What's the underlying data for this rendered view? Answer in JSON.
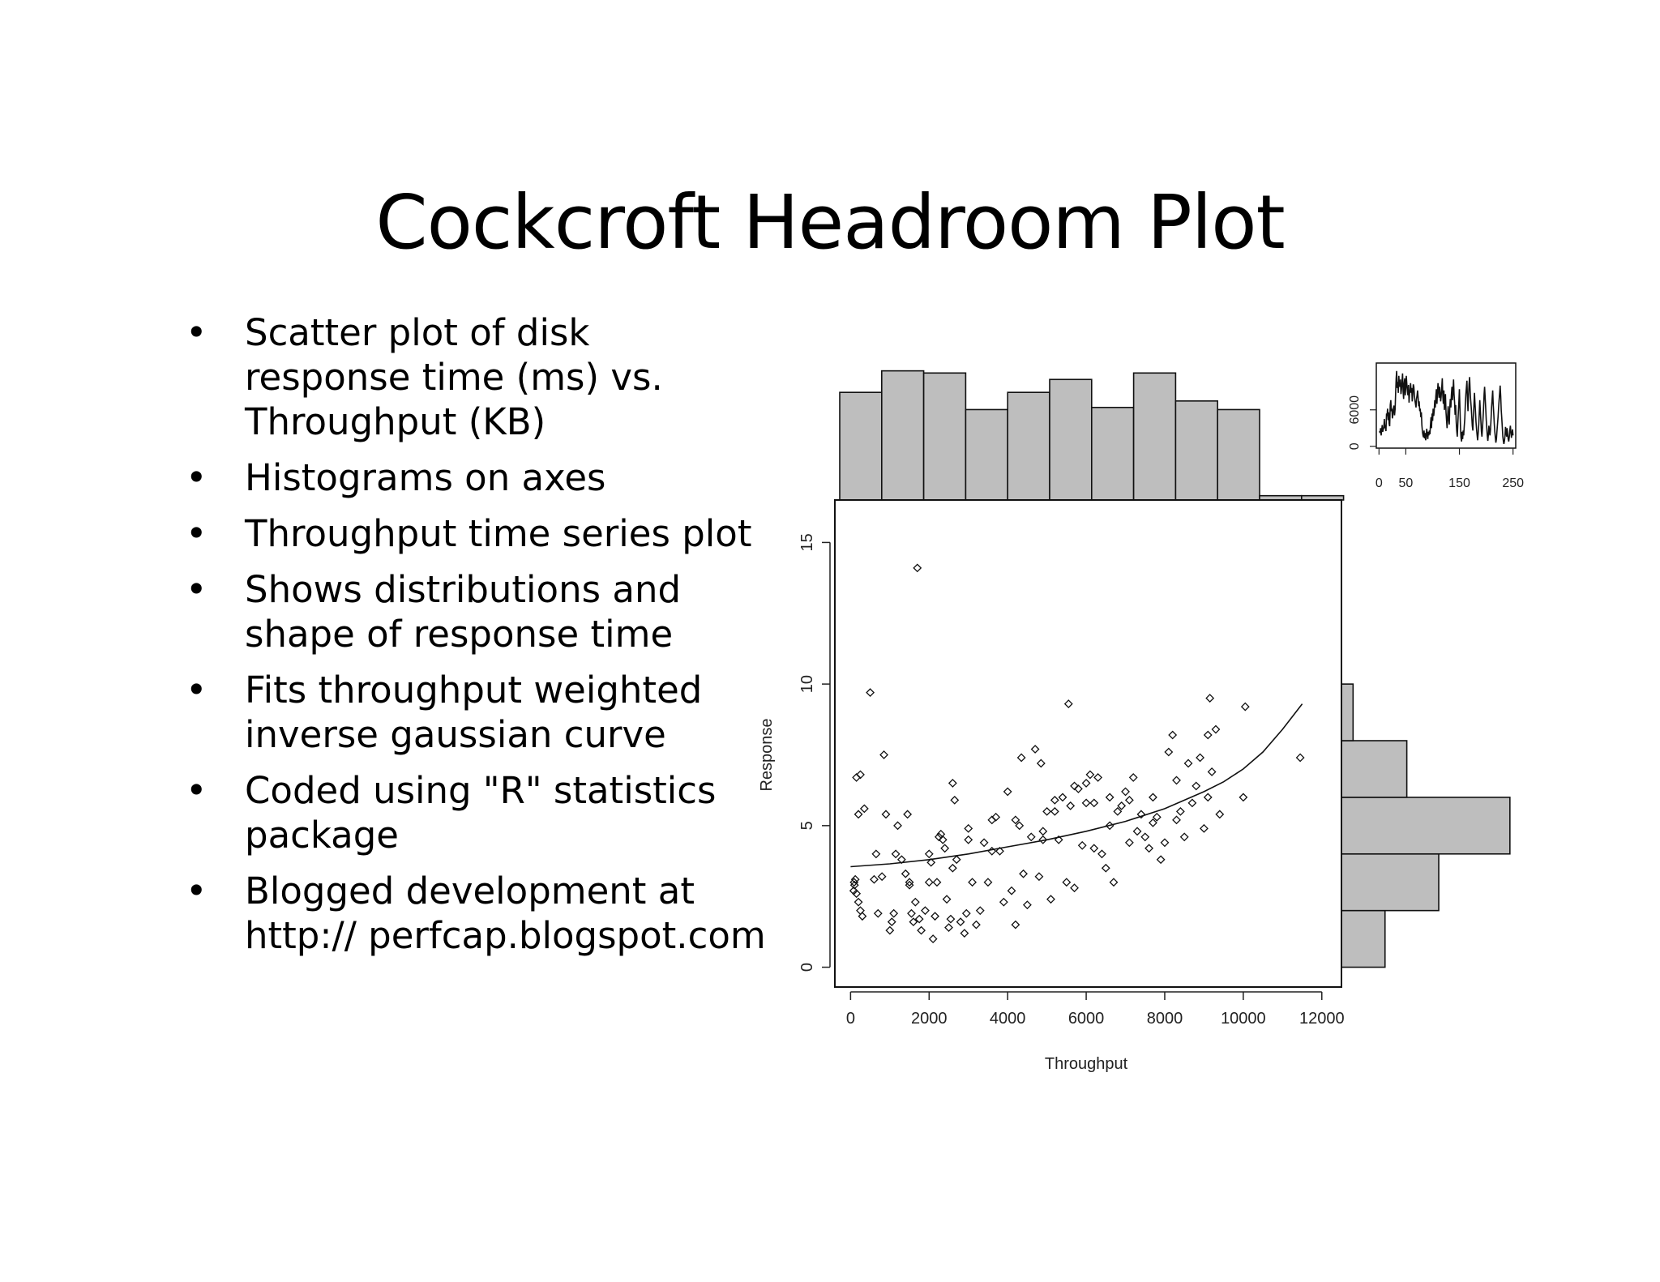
{
  "slide": {
    "title": "Cockcroft Headroom Plot",
    "bullets": [
      "Scatter plot of disk response time (ms) vs. Throughput (KB)",
      "Histograms on axes",
      "Throughput time series plot",
      "Shows distributions and shape of response time",
      "Fits throughput weighted inverse gaussian curve",
      "Coded using \"R\" statistics package",
      "Blogged development at http:// perfcap.blogspot.com"
    ]
  },
  "chart_data": [
    {
      "type": "scatter",
      "title": "",
      "xlabel": "Throughput",
      "ylabel": "Response",
      "xlim": [
        -400,
        12500
      ],
      "ylim": [
        -0.7,
        16.5
      ],
      "xticks": [
        0,
        2000,
        4000,
        6000,
        8000,
        10000,
        12000
      ],
      "yticks": [
        0,
        5,
        10,
        15
      ],
      "grid": false,
      "marker": "open-diamond",
      "points": [
        [
          100,
          2.9
        ],
        [
          150,
          2.6
        ],
        [
          200,
          2.3
        ],
        [
          250,
          2.0
        ],
        [
          80,
          2.7
        ],
        [
          120,
          3.1
        ],
        [
          300,
          1.8
        ],
        [
          90,
          3.0
        ],
        [
          200,
          5.4
        ],
        [
          350,
          5.6
        ],
        [
          150,
          6.7
        ],
        [
          250,
          6.8
        ],
        [
          500,
          9.7
        ],
        [
          600,
          3.1
        ],
        [
          700,
          1.9
        ],
        [
          650,
          4.0
        ],
        [
          800,
          3.2
        ],
        [
          850,
          7.5
        ],
        [
          900,
          5.4
        ],
        [
          1000,
          1.3
        ],
        [
          1050,
          1.6
        ],
        [
          1100,
          1.9
        ],
        [
          1150,
          4.0
        ],
        [
          1200,
          5.0
        ],
        [
          1300,
          3.8
        ],
        [
          1400,
          3.3
        ],
        [
          1450,
          5.4
        ],
        [
          1500,
          3.0
        ],
        [
          1550,
          1.9
        ],
        [
          1600,
          1.6
        ],
        [
          1650,
          2.3
        ],
        [
          1700,
          14.1
        ],
        [
          1750,
          1.7
        ],
        [
          1800,
          1.3
        ],
        [
          1900,
          2.0
        ],
        [
          2000,
          3.0
        ],
        [
          2050,
          3.7
        ],
        [
          2100,
          1.0
        ],
        [
          2150,
          1.8
        ],
        [
          2200,
          3.0
        ],
        [
          2250,
          4.6
        ],
        [
          2300,
          4.7
        ],
        [
          2350,
          4.5
        ],
        [
          2400,
          4.2
        ],
        [
          2450,
          2.4
        ],
        [
          2500,
          1.4
        ],
        [
          2550,
          1.7
        ],
        [
          2600,
          6.5
        ],
        [
          2650,
          5.9
        ],
        [
          2700,
          3.8
        ],
        [
          2800,
          1.6
        ],
        [
          2900,
          1.2
        ],
        [
          2950,
          1.9
        ],
        [
          3000,
          4.9
        ],
        [
          3100,
          3.0
        ],
        [
          3200,
          1.5
        ],
        [
          3300,
          2.0
        ],
        [
          3400,
          4.4
        ],
        [
          3500,
          3.0
        ],
        [
          3600,
          5.2
        ],
        [
          3700,
          5.3
        ],
        [
          3800,
          4.1
        ],
        [
          3900,
          2.3
        ],
        [
          4000,
          6.2
        ],
        [
          4100,
          2.7
        ],
        [
          4200,
          1.5
        ],
        [
          4300,
          5.0
        ],
        [
          4350,
          7.4
        ],
        [
          4400,
          3.3
        ],
        [
          4500,
          2.2
        ],
        [
          4600,
          4.6
        ],
        [
          4700,
          7.7
        ],
        [
          4800,
          3.2
        ],
        [
          4850,
          7.2
        ],
        [
          4900,
          4.8
        ],
        [
          5000,
          5.5
        ],
        [
          5100,
          2.4
        ],
        [
          5200,
          5.9
        ],
        [
          5300,
          4.5
        ],
        [
          5400,
          6.0
        ],
        [
          5500,
          3.0
        ],
        [
          5550,
          9.3
        ],
        [
          5600,
          5.7
        ],
        [
          5700,
          2.8
        ],
        [
          5800,
          6.3
        ],
        [
          5900,
          4.3
        ],
        [
          6000,
          6.5
        ],
        [
          6100,
          6.8
        ],
        [
          6200,
          5.8
        ],
        [
          6300,
          6.7
        ],
        [
          6400,
          4.0
        ],
        [
          6500,
          3.5
        ],
        [
          6600,
          6.0
        ],
        [
          6700,
          3.0
        ],
        [
          6800,
          5.5
        ],
        [
          6900,
          5.7
        ],
        [
          7000,
          6.2
        ],
        [
          7100,
          4.4
        ],
        [
          7200,
          6.7
        ],
        [
          7300,
          4.8
        ],
        [
          7400,
          5.4
        ],
        [
          7500,
          4.6
        ],
        [
          7600,
          4.2
        ],
        [
          7700,
          6.0
        ],
        [
          7800,
          5.3
        ],
        [
          7900,
          3.8
        ],
        [
          8000,
          4.4
        ],
        [
          8100,
          7.6
        ],
        [
          8200,
          8.2
        ],
        [
          8300,
          6.6
        ],
        [
          8400,
          5.5
        ],
        [
          8500,
          4.6
        ],
        [
          8600,
          7.2
        ],
        [
          8700,
          5.8
        ],
        [
          8800,
          6.4
        ],
        [
          8900,
          7.4
        ],
        [
          9000,
          4.9
        ],
        [
          9100,
          8.2
        ],
        [
          9150,
          9.5
        ],
        [
          9200,
          6.9
        ],
        [
          9300,
          8.4
        ],
        [
          9400,
          5.4
        ],
        [
          10000,
          6.0
        ],
        [
          10050,
          9.2
        ],
        [
          11450,
          7.4
        ],
        [
          2000,
          4.0
        ],
        [
          3000,
          4.5
        ],
        [
          3600,
          4.1
        ],
        [
          4200,
          5.2
        ],
        [
          4900,
          4.5
        ],
        [
          5200,
          5.5
        ],
        [
          6000,
          5.8
        ],
        [
          6600,
          5.0
        ],
        [
          7100,
          5.9
        ],
        [
          7700,
          5.1
        ],
        [
          8300,
          5.2
        ],
        [
          9100,
          6.0
        ],
        [
          5700,
          6.4
        ],
        [
          6200,
          4.2
        ],
        [
          2600,
          3.5
        ],
        [
          1500,
          2.9
        ]
      ],
      "fit_curve": {
        "x": [
          0,
          1000,
          2000,
          3000,
          4000,
          5000,
          6000,
          7000,
          8000,
          9000,
          9500,
          10000,
          10500,
          11000,
          11500
        ],
        "y": [
          3.55,
          3.65,
          3.8,
          4.0,
          4.25,
          4.5,
          4.8,
          5.15,
          5.6,
          6.2,
          6.55,
          7.0,
          7.6,
          8.4,
          9.3
        ]
      }
    },
    {
      "type": "bar",
      "title": "",
      "orientation": "vertical",
      "categories": [
        "0-1000",
        "1000-2000",
        "2000-3000",
        "3000-4000",
        "4000-5000",
        "5000-6000",
        "6000-7000",
        "7000-8000",
        "8000-9000",
        "9000-10000",
        "10000-11000",
        "11000-12000"
      ],
      "values": [
        25,
        30,
        29.5,
        21,
        25,
        28,
        21.5,
        29.5,
        23,
        21,
        1,
        1
      ],
      "ylim": [
        0,
        32
      ]
    },
    {
      "type": "bar",
      "title": "",
      "orientation": "horizontal",
      "categories": [
        "0-2",
        "2-4",
        "4-6",
        "6-8",
        "8-10"
      ],
      "values": [
        15,
        33.5,
        58,
        22.5,
        4
      ],
      "xlim": [
        0,
        60
      ]
    },
    {
      "type": "line",
      "title": "",
      "xlabel": "",
      "ylabel": "",
      "xlim": [
        -5,
        255
      ],
      "ylim": [
        -300,
        13700
      ],
      "xticks": [
        0,
        50,
        150,
        250
      ],
      "yticks": [
        0,
        6000
      ],
      "y": [
        2500,
        2200,
        3000,
        1800,
        2600,
        3500,
        2400,
        2800,
        3100,
        4500,
        3000,
        3200,
        2500,
        5400,
        5000,
        6200,
        4300,
        5600,
        3700,
        3300,
        6800,
        7600,
        5800,
        6200,
        4600,
        5200,
        6400,
        6700,
        5100,
        6100,
        8600,
        11200,
        12400,
        9600,
        10600,
        8800,
        11600,
        10200,
        9800,
        11000,
        8600,
        9400,
        10800,
        12000,
        9000,
        7800,
        10400,
        11200,
        8400,
        9700,
        11600,
        10200,
        9100,
        8400,
        10100,
        7200,
        8600,
        9400,
        10400,
        8800,
        9600,
        7400,
        8600,
        10200,
        9800,
        8400,
        7600,
        7000,
        6400,
        7800,
        8400,
        9200,
        8000,
        6600,
        7400,
        5800,
        6200,
        4800,
        5600,
        3500,
        2400,
        1800,
        1500,
        2600,
        1300,
        2200,
        1000,
        1700,
        2900,
        2100,
        1200,
        2400,
        1800,
        2600,
        2000,
        3500,
        4800,
        3000,
        5400,
        4200,
        6200,
        5000,
        5800,
        7600,
        6400,
        8200,
        9400,
        7000,
        8600,
        10400,
        9600,
        8000,
        9800,
        8800,
        7400,
        8200,
        9600,
        11200,
        8400,
        7000,
        9200,
        6000,
        7400,
        8600,
        5600,
        4200,
        3000,
        5000,
        6600,
        4400,
        3600,
        6200,
        7800,
        6400,
        8400,
        9800,
        7600,
        9000,
        11000,
        8600,
        7200,
        5200,
        6800,
        4000,
        2600,
        1600,
        3800,
        5600,
        7400,
        9400,
        6200,
        3000,
        1400,
        800,
        2400,
        1200,
        2600,
        1800,
        3300,
        4600,
        6800,
        8600,
        9600,
        10800,
        7600,
        5800,
        8400,
        10200,
        11400,
        9000,
        7600,
        6400,
        4800,
        3400,
        2600,
        4800,
        6600,
        8800,
        7200,
        5600,
        4000,
        2800,
        1800,
        1000,
        2200,
        3600,
        5400,
        7600,
        6000,
        4200,
        2400,
        1600,
        3000,
        4400,
        6200,
        8600,
        9800,
        8000,
        6200,
        4400,
        3000,
        1800,
        900,
        2000,
        3400,
        2600,
        1800,
        2800,
        4600,
        6400,
        7800,
        9200,
        7000,
        5400,
        3800,
        2400,
        1400,
        600,
        1200,
        2400,
        3600,
        4800,
        6200,
        7600,
        8800,
        10000,
        8200,
        6000,
        4600,
        3000,
        1600,
        800,
        400,
        900,
        1800,
        3200,
        2400,
        1600,
        3000,
        2000,
        1200,
        800,
        1600,
        2600,
        3400,
        2400,
        1400,
        2200,
        2800,
        1800
      ]
    }
  ]
}
